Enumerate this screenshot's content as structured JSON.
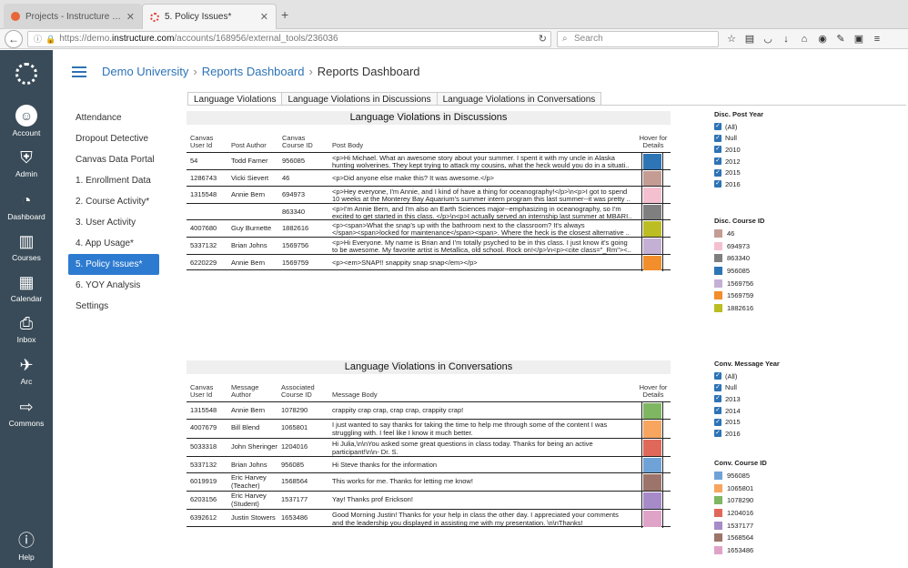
{
  "browser": {
    "tabs": [
      {
        "title": "Projects - Instructure Repo…",
        "close": "✕"
      },
      {
        "title": "5. Policy Issues*",
        "close": "✕"
      }
    ],
    "new_tab": "+",
    "url_prefix": "https://demo.",
    "url_domain": "instructure.com",
    "url_path": "/accounts/168956/external_tools/236036",
    "search_placeholder": "Search"
  },
  "global_nav": {
    "items": [
      {
        "label": "Account",
        "icon": "account-avatar-icon"
      },
      {
        "label": "Admin",
        "icon": "admin-shield-icon"
      },
      {
        "label": "Dashboard",
        "icon": "dashboard-gauge-icon"
      },
      {
        "label": "Courses",
        "icon": "courses-book-icon"
      },
      {
        "label": "Calendar",
        "icon": "calendar-icon"
      },
      {
        "label": "Inbox",
        "icon": "inbox-icon"
      },
      {
        "label": "Arc",
        "icon": "arc-icon"
      },
      {
        "label": "Commons",
        "icon": "commons-icon"
      },
      {
        "label": "Help",
        "icon": "help-icon"
      }
    ]
  },
  "breadcrumb": {
    "root": "Demo University",
    "parent": "Reports Dashboard",
    "current": "Reports Dashboard"
  },
  "course_nav": [
    "Attendance",
    "Dropout Detective",
    "Canvas Data Portal",
    "1. Enrollment Data",
    "2. Course Activity*",
    "3. User Activity",
    "4. App Usage*",
    "5. Policy Issues*",
    "6. YOY Analysis",
    "Settings"
  ],
  "report_tabs": [
    "Language Violations",
    "Language Violations in Discussions",
    "Language Violations in Conversations"
  ],
  "discussions": {
    "title": "Language Violations in Discussions",
    "headers": [
      "Canvas User Id",
      "Post Author",
      "Canvas Course ID",
      "Post Body",
      "Hover for Details"
    ],
    "rows": [
      {
        "user": "54",
        "author": "Todd Farner",
        "course": "956085",
        "body1": "<p>Hi Michael. What an awesome story about your summer. I spent it with my uncle in Alaska",
        "body2": "hunting wolverines. They kept trying to attack my cousins, what the heck would you do in a situati..",
        "color": "#2e75b6"
      },
      {
        "user": "1286743",
        "author": "Vicki Sievert",
        "course": "46",
        "body1": "<p>Did anyone else make this? It was awesome.</p>",
        "body2": "",
        "color": "#c49c94"
      },
      {
        "user": "1315548",
        "author": "Annie Bern",
        "course": "694973",
        "body1": "<p>Hey everyone, I'm Annie, and I kind of have a thing for oceanography!</p>\\n<p>I got to spend",
        "body2": "10 weeks at the Monterey Bay Aquarium's summer intern program this last summer--it was pretty ..",
        "color": "#f4c0d0"
      },
      {
        "user": "",
        "author": "",
        "course": "863340",
        "body1": "<p>I'm Annie Bern, and I'm also an Earth Sciences major--emphasizing in oceanography, so I'm",
        "body2": "excited to get started in this class. </p>\\n<p>I actually served an internship last summer at MBARI..",
        "color": "#7f7f7f"
      },
      {
        "user": "4007680",
        "author": "Guy Burnette",
        "course": "1882616",
        "body1": "<p><span>What the snap's up with the bathroom next to the classroom?  It's always",
        "body2": "</span><span>locked for maintenance</span><span>.  Where the heck is the closest alternative ..",
        "color": "#bcbd22"
      },
      {
        "user": "5337132",
        "author": "Brian Johns",
        "course": "1569756",
        "body1": "<p>Hi Everyone. My name is Brian and I'm totally psyched to be in this class. I just know it's going",
        "body2": "to be awesome. My favorite artist is Metallica, old school. Rock on!</p>\\n<p><cite class=\"_Rm\"><..",
        "color": "#c5b0d5"
      },
      {
        "user": "6220229",
        "author": "Annie Bern",
        "course": "1569759",
        "body1": "<p><em>SNAP!! snappity snap snap</em></p>",
        "body2": "",
        "color": "#f28e2b"
      }
    ]
  },
  "conversations": {
    "title": "Language Violations in Conversations",
    "headers": [
      "Canvas User Id",
      "Message Author",
      "Associated Course ID",
      "Message Body",
      "Hover for Details"
    ],
    "rows": [
      {
        "user": "1315548",
        "author": "Annie Bern",
        "author2": "",
        "course": "1078290",
        "body1": "crappity crap crap, crap crap, crappity crap!",
        "body2": "",
        "color": "#7fb661"
      },
      {
        "user": "4007679",
        "author": "Bill Blend",
        "author2": "",
        "course": "1065801",
        "body1": "I just wanted to say thanks for taking the time to help me through some of the content I was",
        "body2": "struggling with.  I feel like I know it much better.",
        "color": "#f7a55f"
      },
      {
        "user": "5033318",
        "author": "John Sheringer",
        "author2": "",
        "course": "1204016",
        "body1": "Hi Julia,\\n\\nYou asked some great questions in class today.  Thanks for being an active",
        "body2": "participant!\\n\\n- Dr. S.",
        "color": "#e0685a"
      },
      {
        "user": "5337132",
        "author": "Brian Johns",
        "author2": "",
        "course": "956085",
        "body1": "Hi Steve thanks for the information",
        "body2": "",
        "color": "#6fa3d8"
      },
      {
        "user": "6019919",
        "author": "Eric Harvey",
        "author2": "(Teacher)",
        "course": "1568564",
        "body1": "This works for me. Thanks for letting me know!",
        "body2": "",
        "color": "#9d7469"
      },
      {
        "user": "6203156",
        "author": "Eric Harvey",
        "author2": "(Student)",
        "course": "1537177",
        "body1": "Yay! Thanks prof Erickson!",
        "body2": "",
        "color": "#a68bc8"
      },
      {
        "user": "6392612",
        "author": "Justin Stowers",
        "author2": "",
        "course": "1653486",
        "body1": "Good Morning Justin! Thanks for your help in class the other day. I appreciated your comments",
        "body2": "and the leadership you displayed in assisting me with my presentation. \\n\\nThanks!",
        "color": "#e0a3c8"
      }
    ]
  },
  "filters": {
    "disc_year": {
      "title": "Disc. Post Year",
      "items": [
        "(All)",
        "Null",
        "2010",
        "2012",
        "2015",
        "2016"
      ]
    },
    "disc_course": {
      "title": "Disc. Course ID",
      "items": [
        {
          "label": "46",
          "color": "#c49c94"
        },
        {
          "label": "694973",
          "color": "#f4c0d0"
        },
        {
          "label": "863340",
          "color": "#7f7f7f"
        },
        {
          "label": "956085",
          "color": "#2e75b6"
        },
        {
          "label": "1569756",
          "color": "#c5b0d5"
        },
        {
          "label": "1569759",
          "color": "#f28e2b"
        },
        {
          "label": "1882616",
          "color": "#bcbd22"
        }
      ]
    },
    "conv_year": {
      "title": "Conv. Message Year",
      "items": [
        "(All)",
        "Null",
        "2013",
        "2014",
        "2015",
        "2016"
      ]
    },
    "conv_course": {
      "title": "Conv. Course ID",
      "items": [
        {
          "label": "956085",
          "color": "#6fa3d8"
        },
        {
          "label": "1065801",
          "color": "#f7a55f"
        },
        {
          "label": "1078290",
          "color": "#7fb661"
        },
        {
          "label": "1204016",
          "color": "#e0685a"
        },
        {
          "label": "1537177",
          "color": "#a68bc8"
        },
        {
          "label": "1568564",
          "color": "#9d7469"
        },
        {
          "label": "1653486",
          "color": "#e0a3c8"
        }
      ]
    }
  }
}
